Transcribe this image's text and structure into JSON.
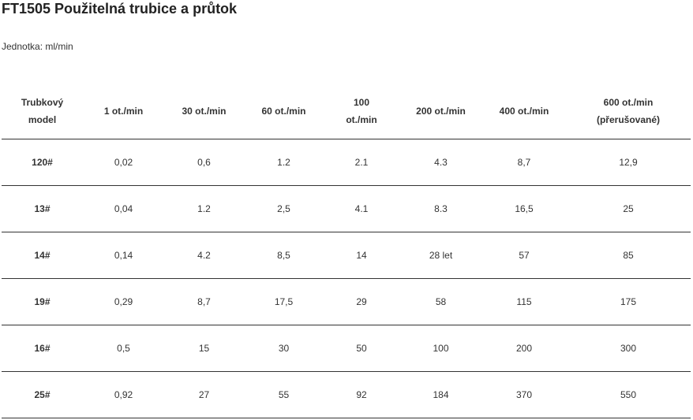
{
  "title": "FT1505 Použitelná trubice a průtok",
  "unit_label": "Jednotka: ml/min",
  "table": {
    "headers": [
      {
        "line1": "Trubkový",
        "line2": "model"
      },
      {
        "line1": "1 ot./min",
        "line2": ""
      },
      {
        "line1": "30 ot./min",
        "line2": ""
      },
      {
        "line1": "60 ot./min",
        "line2": ""
      },
      {
        "line1": "100",
        "line2": "ot./min"
      },
      {
        "line1": "200 ot./min",
        "line2": ""
      },
      {
        "line1": "400 ot./min",
        "line2": ""
      },
      {
        "line1": "600 ot./min",
        "line2": "(přerušované)"
      }
    ],
    "rows": [
      [
        "120#",
        "0,02",
        "0,6",
        "1.2",
        "2.1",
        "4.3",
        "8,7",
        "12,9"
      ],
      [
        "13#",
        "0,04",
        "1.2",
        "2,5",
        "4.1",
        "8.3",
        "16,5",
        "25"
      ],
      [
        "14#",
        "0,14",
        "4.2",
        "8,5",
        "14",
        "28 let",
        "57",
        "85"
      ],
      [
        "19#",
        "0,29",
        "8,7",
        "17,5",
        "29",
        "58",
        "115",
        "175"
      ],
      [
        "16#",
        "0,5",
        "15",
        "30",
        "50",
        "100",
        "200",
        "300"
      ],
      [
        "25#",
        "0,92",
        "27",
        "55",
        "92",
        "184",
        "370",
        "550"
      ]
    ]
  }
}
